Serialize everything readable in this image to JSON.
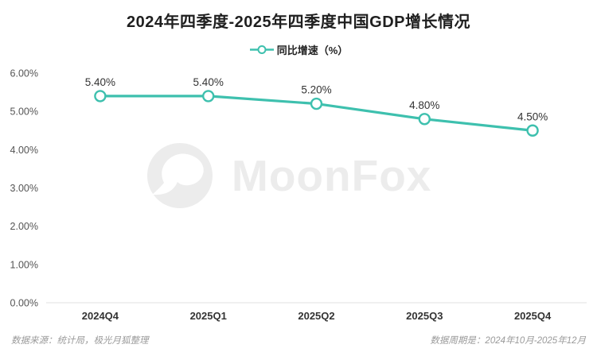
{
  "title": "2024年四季度-2025年四季度中国GDP增长情况",
  "legend": {
    "label": "同比增速（%）"
  },
  "watermark": {
    "text": "MoonFox"
  },
  "footer": {
    "source": "数据来源：统计局，极光月狐整理",
    "period": "数据周期是：2024年10月-2025年12月"
  },
  "colors": {
    "line": "#3ec0ae",
    "marker_fill": "#ffffff",
    "axis_line": "#e2e2e2",
    "tick_text": "#555555",
    "x_tick_text": "#333333",
    "data_label": "#333333",
    "watermark": "#ececec"
  },
  "chart_data": {
    "type": "line",
    "title": "2024年四季度-2025年四季度中国GDP增长情况",
    "categories": [
      "2024Q4",
      "2025Q1",
      "2025Q2",
      "2025Q3",
      "2025Q4"
    ],
    "series": [
      {
        "name": "同比增速（%）",
        "values": [
          5.4,
          5.4,
          5.2,
          4.8,
          4.5
        ]
      }
    ],
    "point_labels": [
      "5.40%",
      "5.40%",
      "5.20%",
      "4.80%",
      "4.50%"
    ],
    "y_tick_labels": [
      "0.00%",
      "1.00%",
      "2.00%",
      "3.00%",
      "4.00%",
      "5.00%",
      "6.00%"
    ],
    "ylim": [
      0,
      6
    ],
    "xlabel": "",
    "ylabel": "",
    "grid": false,
    "legend_position": "top",
    "marker": "open-circle"
  }
}
